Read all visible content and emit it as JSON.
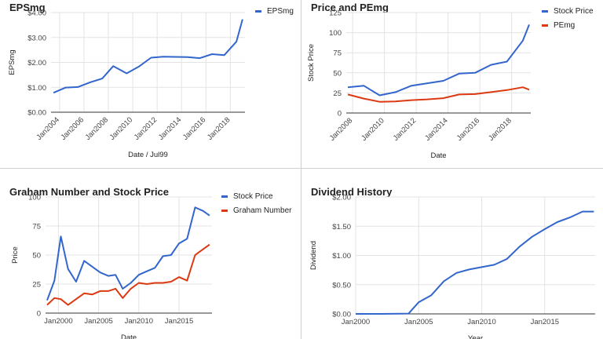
{
  "chart_data": [
    {
      "type": "line",
      "title": "EPSmg",
      "xlabel": "Date / Jul99",
      "ylabel": "EPSmg",
      "x_type": "year",
      "xlim": [
        2003.3,
        2019.2
      ],
      "x_ticks": [
        2004,
        2006,
        2008,
        2010,
        2012,
        2014,
        2016,
        2018
      ],
      "x_tick_labels": [
        "Jan2004",
        "Jan2006",
        "Jan2008",
        "Jan2010",
        "Jan2012",
        "Jan2014",
        "Jan2016",
        "Jan2018"
      ],
      "ylim": [
        0,
        4
      ],
      "y_ticks": [
        0,
        1,
        2,
        3,
        4
      ],
      "y_tick_labels": [
        "$0.00",
        "$1.00",
        "$2.00",
        "$3.00",
        "$4.00"
      ],
      "grid": true,
      "legend": "top-right",
      "series": [
        {
          "name": "EPSmg",
          "color": "#3366cc",
          "x": [
            2003.5,
            2004.5,
            2005.5,
            2006.5,
            2007.5,
            2008.4,
            2009.5,
            2010.5,
            2011.5,
            2012.5,
            2013.5,
            2014.5,
            2015.5,
            2016.5,
            2017.5,
            2018.5,
            2019.0
          ],
          "values": [
            0.78,
            0.99,
            1.01,
            1.2,
            1.35,
            1.85,
            1.56,
            1.83,
            2.19,
            2.23,
            2.22,
            2.21,
            2.17,
            2.33,
            2.29,
            2.83,
            3.73
          ]
        }
      ]
    },
    {
      "type": "line",
      "title": "Price and PEmg",
      "xlabel": "Date",
      "ylabel": "Stock Price",
      "x_type": "year",
      "xlim": [
        2007.6,
        2019.2
      ],
      "x_ticks": [
        2008,
        2010,
        2012,
        2014,
        2016,
        2018
      ],
      "x_tick_labels": [
        "Jan2008",
        "Jan2010",
        "Jan2012",
        "Jan2014",
        "Jan2016",
        "Jan2018"
      ],
      "ylim": [
        0,
        125
      ],
      "y_ticks": [
        0,
        25,
        50,
        75,
        100,
        125
      ],
      "y_tick_labels": [
        "0",
        "25",
        "50",
        "75",
        "100",
        "125"
      ],
      "grid": true,
      "legend": "top-right",
      "series": [
        {
          "name": "Stock Price",
          "color": "#3366cc",
          "x": [
            2007.7,
            2008.7,
            2009.7,
            2010.7,
            2011.7,
            2012.7,
            2013.7,
            2014.7,
            2015.7,
            2016.7,
            2017.7,
            2018.7,
            2019.1
          ],
          "values": [
            32,
            34,
            22,
            26,
            34,
            37,
            40,
            49,
            50,
            60,
            64,
            90,
            110
          ]
        },
        {
          "name": "PEmg",
          "color": "#dc3912",
          "x": [
            2007.7,
            2008.7,
            2009.7,
            2010.7,
            2011.7,
            2012.7,
            2013.7,
            2014.7,
            2015.7,
            2016.7,
            2017.7,
            2018.7,
            2019.1
          ],
          "values": [
            23,
            18,
            14,
            14.5,
            16,
            17,
            18.5,
            23,
            23.5,
            26,
            28.5,
            32,
            29
          ]
        }
      ]
    },
    {
      "type": "line",
      "title": "Graham Number and Stock Price",
      "xlabel": "Date",
      "ylabel": "Price",
      "x_type": "year",
      "xlim": [
        1998.4,
        2019.1
      ],
      "x_ticks": [
        2000,
        2005,
        2010,
        2015
      ],
      "x_tick_labels": [
        "Jan2000",
        "Jan2005",
        "Jan2010",
        "Jan2015"
      ],
      "ylim": [
        0,
        100
      ],
      "y_ticks": [
        0,
        25,
        50,
        75,
        100
      ],
      "y_tick_labels": [
        "0",
        "25",
        "50",
        "75",
        "100"
      ],
      "grid": true,
      "legend": "top-right",
      "series": [
        {
          "name": "Stock Price",
          "color": "#3366cc",
          "x": [
            1998.6,
            1999.5,
            2000.3,
            2001.2,
            2002.2,
            2003.2,
            2004.2,
            2005.2,
            2006.2,
            2007.1,
            2008.0,
            2009.0,
            2010.0,
            2011.0,
            2012.0,
            2013.0,
            2014.0,
            2015.0,
            2016.0,
            2017.0,
            2018.0,
            2018.8
          ],
          "values": [
            11,
            28,
            66,
            38,
            27,
            45,
            40,
            35,
            32,
            33,
            21,
            26,
            33,
            36,
            39,
            49,
            50,
            60,
            64,
            91,
            88,
            84
          ]
        },
        {
          "name": "Graham Number",
          "color": "#dc3912",
          "x": [
            1998.6,
            1999.5,
            2000.3,
            2001.2,
            2002.2,
            2003.2,
            2004.2,
            2005.2,
            2006.2,
            2007.1,
            2008.0,
            2009.0,
            2010.0,
            2011.0,
            2012.0,
            2013.0,
            2014.0,
            2015.0,
            2016.0,
            2017.0,
            2018.0,
            2018.8
          ],
          "values": [
            7,
            13,
            12,
            7,
            12,
            17,
            16,
            19,
            19,
            21,
            13,
            21,
            26,
            25,
            26,
            26,
            27,
            31,
            28,
            50,
            55,
            59
          ]
        }
      ]
    },
    {
      "type": "line",
      "title": "Dividend History",
      "xlabel": "Year",
      "ylabel": "Dividend",
      "x_type": "year",
      "xlim": [
        2000,
        2019
      ],
      "x_ticks": [
        2000,
        2005,
        2010,
        2015
      ],
      "x_tick_labels": [
        "Jan2000",
        "Jan2005",
        "Jan2010",
        "Jan2015"
      ],
      "ylim": [
        0,
        2
      ],
      "y_ticks": [
        0,
        0.5,
        1,
        1.5,
        2
      ],
      "y_tick_labels": [
        "$0.00",
        "$0.50",
        "$1.00",
        "$1.50",
        "$2.00"
      ],
      "grid": true,
      "legend": "none",
      "series": [
        {
          "name": "Dividend",
          "color": "#3366cc",
          "x": [
            2000.0,
            2002.0,
            2004.2,
            2005.0,
            2006.0,
            2007.0,
            2008.0,
            2009.0,
            2010.0,
            2011.0,
            2012.0,
            2013.0,
            2014.0,
            2015.0,
            2016.0,
            2017.0,
            2018.0,
            2018.9
          ],
          "values": [
            0,
            0,
            0.005,
            0.2,
            0.32,
            0.56,
            0.7,
            0.76,
            0.8,
            0.84,
            0.94,
            1.15,
            1.32,
            1.45,
            1.57,
            1.65,
            1.75,
            1.75
          ]
        }
      ]
    }
  ]
}
